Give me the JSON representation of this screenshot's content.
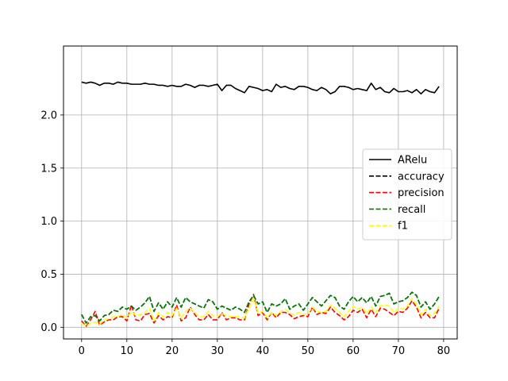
{
  "chart_data": {
    "type": "line",
    "title": "",
    "xlabel": "",
    "ylabel": "",
    "xlim": [
      -4,
      83
    ],
    "ylim": [
      -0.11,
      2.65
    ],
    "xticks": [
      0,
      10,
      20,
      30,
      40,
      50,
      60,
      70,
      80
    ],
    "xtick_labels": [
      "0",
      "10",
      "20",
      "30",
      "40",
      "50",
      "60",
      "70",
      "80"
    ],
    "yticks": [
      0.0,
      0.5,
      1.0,
      1.5,
      2.0
    ],
    "ytick_labels": [
      "0.0",
      "0.5",
      "1.0",
      "1.5",
      "2.0"
    ],
    "grid": true,
    "legend": "center-right",
    "x": [
      0,
      1,
      2,
      3,
      4,
      5,
      6,
      7,
      8,
      9,
      10,
      11,
      12,
      13,
      14,
      15,
      16,
      17,
      18,
      19,
      20,
      21,
      22,
      23,
      24,
      25,
      26,
      27,
      28,
      29,
      30,
      31,
      32,
      33,
      34,
      35,
      36,
      37,
      38,
      39,
      40,
      41,
      42,
      43,
      44,
      45,
      46,
      47,
      48,
      49,
      50,
      51,
      52,
      53,
      54,
      55,
      56,
      57,
      58,
      59,
      60,
      61,
      62,
      63,
      64,
      65,
      66,
      67,
      68,
      69,
      70,
      71,
      72,
      73,
      74,
      75,
      76,
      77,
      78,
      79
    ],
    "series": [
      {
        "name": "ARelu",
        "color": "#000000",
        "dash": "solid",
        "values": [
          2.31,
          2.3,
          2.31,
          2.3,
          2.28,
          2.3,
          2.3,
          2.29,
          2.31,
          2.3,
          2.3,
          2.29,
          2.29,
          2.29,
          2.3,
          2.29,
          2.29,
          2.28,
          2.28,
          2.27,
          2.28,
          2.27,
          2.27,
          2.29,
          2.28,
          2.26,
          2.28,
          2.28,
          2.27,
          2.28,
          2.29,
          2.23,
          2.28,
          2.28,
          2.25,
          2.23,
          2.21,
          2.27,
          2.26,
          2.25,
          2.23,
          2.24,
          2.22,
          2.29,
          2.26,
          2.27,
          2.25,
          2.24,
          2.27,
          2.27,
          2.26,
          2.24,
          2.23,
          2.26,
          2.24,
          2.2,
          2.22,
          2.27,
          2.27,
          2.26,
          2.24,
          2.25,
          2.24,
          2.23,
          2.3,
          2.24,
          2.26,
          2.22,
          2.21,
          2.25,
          2.22,
          2.22,
          2.23,
          2.21,
          2.24,
          2.2,
          2.24,
          2.22,
          2.21,
          2.27
        ]
      },
      {
        "name": "accuracy",
        "color": "#000000",
        "dash": "dashed",
        "values": [
          0.12,
          0.04,
          0.1,
          0.11,
          0.06,
          0.11,
          0.12,
          0.16,
          0.15,
          0.19,
          0.17,
          0.2,
          0.16,
          0.19,
          0.23,
          0.29,
          0.15,
          0.23,
          0.17,
          0.24,
          0.19,
          0.28,
          0.19,
          0.28,
          0.24,
          0.22,
          0.2,
          0.18,
          0.26,
          0.24,
          0.17,
          0.2,
          0.18,
          0.16,
          0.19,
          0.17,
          0.14,
          0.24,
          0.3,
          0.22,
          0.24,
          0.14,
          0.22,
          0.2,
          0.22,
          0.27,
          0.17,
          0.2,
          0.22,
          0.16,
          0.22,
          0.28,
          0.24,
          0.2,
          0.25,
          0.3,
          0.28,
          0.2,
          0.17,
          0.24,
          0.29,
          0.24,
          0.28,
          0.23,
          0.29,
          0.2,
          0.29,
          0.3,
          0.32,
          0.22,
          0.24,
          0.25,
          0.28,
          0.33,
          0.3,
          0.19,
          0.24,
          0.17,
          0.22,
          0.29
        ]
      },
      {
        "name": "precision",
        "color": "#ff0000",
        "dash": "dashed",
        "values": [
          0.06,
          0.01,
          0.07,
          0.15,
          0.02,
          0.05,
          0.07,
          0.07,
          0.1,
          0.1,
          0.06,
          0.21,
          0.07,
          0.06,
          0.12,
          0.13,
          0.04,
          0.11,
          0.07,
          0.1,
          0.09,
          0.21,
          0.06,
          0.09,
          0.19,
          0.12,
          0.07,
          0.07,
          0.12,
          0.07,
          0.07,
          0.14,
          0.07,
          0.09,
          0.09,
          0.07,
          0.07,
          0.22,
          0.31,
          0.11,
          0.14,
          0.07,
          0.14,
          0.09,
          0.14,
          0.14,
          0.12,
          0.08,
          0.1,
          0.11,
          0.1,
          0.19,
          0.12,
          0.14,
          0.13,
          0.19,
          0.14,
          0.11,
          0.07,
          0.1,
          0.16,
          0.14,
          0.17,
          0.09,
          0.17,
          0.1,
          0.18,
          0.17,
          0.14,
          0.11,
          0.15,
          0.14,
          0.18,
          0.25,
          0.19,
          0.09,
          0.14,
          0.09,
          0.09,
          0.18
        ]
      },
      {
        "name": "recall",
        "color": "#008000",
        "dash": "dashed",
        "values": [
          0.12,
          0.04,
          0.1,
          0.11,
          0.06,
          0.11,
          0.12,
          0.16,
          0.15,
          0.19,
          0.17,
          0.2,
          0.16,
          0.19,
          0.23,
          0.29,
          0.15,
          0.23,
          0.17,
          0.24,
          0.19,
          0.28,
          0.19,
          0.28,
          0.24,
          0.22,
          0.2,
          0.18,
          0.26,
          0.24,
          0.17,
          0.2,
          0.18,
          0.16,
          0.19,
          0.17,
          0.14,
          0.24,
          0.3,
          0.22,
          0.24,
          0.14,
          0.22,
          0.2,
          0.22,
          0.27,
          0.17,
          0.2,
          0.22,
          0.16,
          0.22,
          0.28,
          0.24,
          0.2,
          0.25,
          0.3,
          0.28,
          0.2,
          0.17,
          0.24,
          0.29,
          0.24,
          0.28,
          0.23,
          0.29,
          0.2,
          0.29,
          0.3,
          0.32,
          0.22,
          0.24,
          0.25,
          0.28,
          0.33,
          0.3,
          0.19,
          0.24,
          0.17,
          0.22,
          0.29
        ]
      },
      {
        "name": "f1",
        "color": "#ffff00",
        "dash": "dashed",
        "values": [
          0.04,
          0.01,
          0.04,
          0.05,
          0.03,
          0.07,
          0.08,
          0.1,
          0.1,
          0.12,
          0.09,
          0.15,
          0.11,
          0.12,
          0.14,
          0.18,
          0.06,
          0.14,
          0.1,
          0.14,
          0.11,
          0.18,
          0.09,
          0.15,
          0.18,
          0.14,
          0.1,
          0.1,
          0.15,
          0.11,
          0.1,
          0.13,
          0.11,
          0.1,
          0.1,
          0.1,
          0.09,
          0.18,
          0.27,
          0.14,
          0.15,
          0.09,
          0.14,
          0.11,
          0.15,
          0.17,
          0.13,
          0.12,
          0.14,
          0.12,
          0.13,
          0.19,
          0.15,
          0.14,
          0.15,
          0.21,
          0.18,
          0.14,
          0.1,
          0.15,
          0.2,
          0.17,
          0.19,
          0.13,
          0.19,
          0.14,
          0.2,
          0.21,
          0.2,
          0.14,
          0.18,
          0.17,
          0.2,
          0.27,
          0.22,
          0.12,
          0.17,
          0.11,
          0.13,
          0.2
        ]
      }
    ]
  }
}
